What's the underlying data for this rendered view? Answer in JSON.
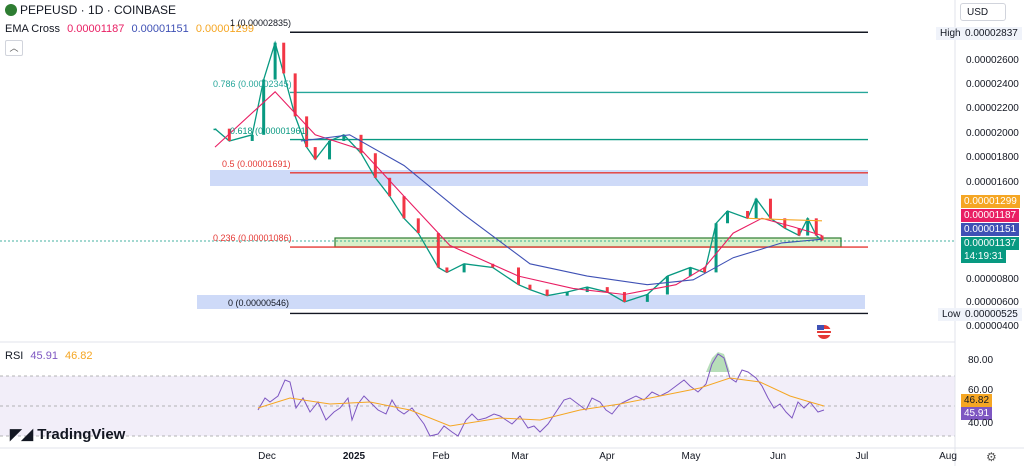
{
  "header": {
    "title": "PEPEUSD · 1D · COINBASE",
    "indicator_name": "EMA Cross",
    "ema_values": [
      {
        "value": "0.00001187",
        "color": "#e91e63"
      },
      {
        "value": "0.00001151",
        "color": "#3f51b5"
      },
      {
        "value": "0.00001299",
        "color": "#f5a623"
      }
    ],
    "collapse_icon": "chevron-up-icon",
    "currency": "USD"
  },
  "price_axis": {
    "ticks": [
      "0.00002600",
      "0.00002400",
      "0.00002200",
      "0.00002000",
      "0.00001800",
      "0.00001600",
      "0.00000800",
      "0.00000600",
      "0.00000400"
    ],
    "high_label": "High",
    "high_value": "0.00002837",
    "low_label": "Low",
    "low_value": "0.00000525",
    "tags": [
      {
        "text": "0.00001299",
        "color": "#f5a623"
      },
      {
        "text": "0.00001187",
        "color": "#e91e63"
      },
      {
        "text": "0.00001151",
        "color": "#3f51b5"
      },
      {
        "text": "0.00001137",
        "color": "#089981"
      }
    ],
    "countdown": "14:19:31"
  },
  "fib_levels": [
    {
      "label": "1 (0.00002835)",
      "price": 2.835e-05,
      "color": "#131722"
    },
    {
      "label": "0.786 (0.00002345)",
      "price": 2.345e-05,
      "color": "#26a69a"
    },
    {
      "label": "0.618 (0.00001961)",
      "price": 1.961e-05,
      "color": "#089981"
    },
    {
      "label": "0.5 (0.00001691)",
      "price": 1.691e-05,
      "color": "#e53935"
    },
    {
      "label": "0.236 (0.00001086)",
      "price": 1.086e-05,
      "color": "#e53935"
    },
    {
      "label": "0 (0.00000546)",
      "price": 5.46e-06,
      "color": "#131722"
    }
  ],
  "x_axis": {
    "labels": [
      "Dec",
      "2025",
      "Feb",
      "Mar",
      "Apr",
      "May",
      "Jun",
      "Jul",
      "Aug"
    ]
  },
  "rsi": {
    "name": "RSI",
    "value": "45.91",
    "ma_value": "46.82",
    "ticks": [
      "80.00",
      "60.00",
      "40.00"
    ],
    "value_color": "#7e57c2",
    "ma_color": "#f5a623"
  },
  "branding": {
    "logo_text": "TradingView",
    "logo_icon": "tradingview-logo-icon"
  },
  "settings_icon": "gear-icon",
  "flag_icon": "us-flag-icon",
  "chart_data": {
    "type": "line",
    "title": "PEPEUSD · 1D · COINBASE",
    "x_labels": [
      "Dec",
      "2025",
      "Feb",
      "Mar",
      "Apr",
      "May",
      "Jun",
      "Jul",
      "Aug"
    ],
    "series": [
      {
        "name": "PEPEUSD",
        "color": "#089981",
        "x": [
          "2024-11-15",
          "2024-11-20",
          "2024-11-28",
          "2024-12-02",
          "2024-12-06",
          "2024-12-09",
          "2024-12-13",
          "2024-12-17",
          "2024-12-20",
          "2024-12-25",
          "2024-12-30",
          "2025-01-05",
          "2025-01-10",
          "2025-01-15",
          "2025-01-20",
          "2025-01-25",
          "2025-02-01",
          "2025-02-04",
          "2025-02-10",
          "2025-02-20",
          "2025-03-01",
          "2025-03-05",
          "2025-03-11",
          "2025-03-18",
          "2025-03-25",
          "2025-04-01",
          "2025-04-07",
          "2025-04-15",
          "2025-04-22",
          "2025-04-30",
          "2025-05-05",
          "2025-05-09",
          "2025-05-13",
          "2025-05-20",
          "2025-05-23",
          "2025-05-28",
          "2025-06-02",
          "2025-06-07",
          "2025-06-10",
          "2025-06-13",
          "2025-06-15"
        ],
        "values": [
          2.05e-05,
          1.95e-05,
          2e-05,
          2.45e-05,
          2.75e-05,
          2.5e-05,
          2.15e-05,
          1.9e-05,
          1.8e-05,
          1.95e-05,
          2e-05,
          1.85e-05,
          1.65e-05,
          1.5e-05,
          1.32e-05,
          1.2e-05,
          9.2e-06,
          8.8e-06,
          9.5e-06,
          9.2e-06,
          7.8e-06,
          7.4e-06,
          6.9e-06,
          7.2e-06,
          7.6e-06,
          7.2e-06,
          6.4e-06,
          7e-06,
          8.5e-06,
          9.2e-06,
          8.8e-06,
          1.28e-05,
          1.38e-05,
          1.32e-05,
          1.48e-05,
          1.32e-05,
          1.24e-05,
          1.18e-05,
          1.32e-05,
          1.18e-05,
          1.14e-05
        ]
      },
      {
        "name": "EMA fast",
        "color": "#e91e63",
        "x": [
          "2024-11-15",
          "2024-12-06",
          "2024-12-20",
          "2025-01-05",
          "2025-01-20",
          "2025-02-05",
          "2025-03-01",
          "2025-03-20",
          "2025-04-07",
          "2025-04-25",
          "2025-05-05",
          "2025-05-15",
          "2025-05-25",
          "2025-06-05",
          "2025-06-15"
        ],
        "values": [
          1.9e-05,
          2.35e-05,
          2e-05,
          1.88e-05,
          1.5e-05,
          1.1e-05,
          8.5e-06,
          7.5e-06,
          7e-06,
          7.8e-06,
          9.2e-06,
          1.2e-05,
          1.32e-05,
          1.25e-05,
          1.18e-05
        ]
      },
      {
        "name": "EMA slow",
        "color": "#3f51b5",
        "x": [
          "2024-12-15",
          "2025-01-01",
          "2025-01-20",
          "2025-02-10",
          "2025-03-05",
          "2025-03-25",
          "2025-04-15",
          "2025-05-01",
          "2025-05-15",
          "2025-06-01",
          "2025-06-15"
        ],
        "values": [
          1.95e-05,
          2e-05,
          1.75e-05,
          1.35e-05,
          9.5e-06,
          8.5e-06,
          7.8e-06,
          8.2e-06,
          1e-05,
          1.12e-05,
          1.15e-05
        ]
      },
      {
        "name": "EMA long",
        "color": "#f5a623",
        "x": [
          "2025-05-20",
          "2025-06-01",
          "2025-06-15"
        ],
        "values": [
          1.32e-05,
          1.31e-05,
          1.3e-05
        ]
      }
    ],
    "y_scale": "linear",
    "ylim": [
      4e-06,
      2.9e-05
    ],
    "grid": false
  }
}
